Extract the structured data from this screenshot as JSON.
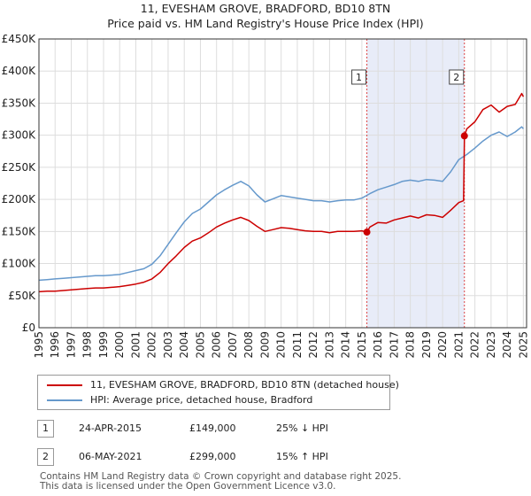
{
  "title_line1": "11, EVESHAM GROVE, BRADFORD, BD10 8TN",
  "title_line2": "Price paid vs. HM Land Registry's House Price Index (HPI)",
  "colors": {
    "property": "#cc0000",
    "hpi": "#6699cc",
    "shade": "#e8ecf8",
    "grid": "#dddddd",
    "vline": "#dd4444"
  },
  "chart_data": {
    "type": "line",
    "title": "11, EVESHAM GROVE, BRADFORD, BD10 8TN — Price paid vs. HM Land Registry's House Price Index (HPI)",
    "xlabel": "",
    "ylabel": "",
    "xlim": [
      1995,
      2025.2
    ],
    "ylim": [
      0,
      450000
    ],
    "y_ticks": [
      0,
      50000,
      100000,
      150000,
      200000,
      250000,
      300000,
      350000,
      400000,
      450000
    ],
    "y_tick_labels": [
      "£0",
      "£50K",
      "£100K",
      "£150K",
      "£200K",
      "£250K",
      "£300K",
      "£350K",
      "£400K",
      "£450K"
    ],
    "x_ticks": [
      1995,
      1996,
      1997,
      1998,
      1999,
      2000,
      2001,
      2002,
      2003,
      2004,
      2005,
      2006,
      2007,
      2008,
      2009,
      2010,
      2011,
      2012,
      2013,
      2014,
      2015,
      2016,
      2017,
      2018,
      2019,
      2020,
      2021,
      2022,
      2023,
      2024,
      2025
    ],
    "x_tick_labels": [
      "1995",
      "1996",
      "1997",
      "1998",
      "1999",
      "2000",
      "2001",
      "2002",
      "2003",
      "2004",
      "2005",
      "2006",
      "2007",
      "2008",
      "2009",
      "2010",
      "2011",
      "2012",
      "2013",
      "2014",
      "2015",
      "2016",
      "2017",
      "2018",
      "2019",
      "2020",
      "2021",
      "2022",
      "2023",
      "2024",
      "2025"
    ],
    "shaded_region": [
      2015.31,
      2021.35
    ],
    "series": [
      {
        "name": "11, EVESHAM GROVE, BRADFORD, BD10 8TN (detached house)",
        "color": "#cc0000",
        "x": [
          1995.0,
          1995.5,
          1996.0,
          1996.5,
          1997.0,
          1997.5,
          1998.0,
          1998.5,
          1999.0,
          1999.5,
          2000.0,
          2000.5,
          2001.0,
          2001.5,
          2002.0,
          2002.5,
          2003.0,
          2003.5,
          2004.0,
          2004.5,
          2005.0,
          2005.5,
          2006.0,
          2006.5,
          2007.0,
          2007.5,
          2008.0,
          2008.5,
          2009.0,
          2009.5,
          2010.0,
          2010.5,
          2011.0,
          2011.5,
          2012.0,
          2012.5,
          2013.0,
          2013.5,
          2014.0,
          2014.5,
          2015.0,
          2015.31,
          2015.5,
          2016.0,
          2016.5,
          2017.0,
          2017.5,
          2018.0,
          2018.5,
          2019.0,
          2019.5,
          2020.0,
          2020.5,
          2021.0,
          2021.3,
          2021.35,
          2021.5,
          2022.0,
          2022.5,
          2023.0,
          2023.5,
          2024.0,
          2024.5,
          2024.9,
          2025.0
        ],
        "values": [
          56000,
          57000,
          57000,
          58000,
          59000,
          60000,
          61000,
          62000,
          62000,
          63000,
          64000,
          66000,
          68000,
          71000,
          76000,
          86000,
          100000,
          112000,
          125000,
          135000,
          140000,
          148000,
          157000,
          163000,
          168000,
          172000,
          167000,
          158000,
          150000,
          153000,
          156000,
          155000,
          153000,
          151000,
          150000,
          150000,
          148000,
          150000,
          150000,
          150000,
          151000,
          149000,
          157000,
          164000,
          163000,
          168000,
          171000,
          174000,
          171000,
          176000,
          175000,
          172000,
          183000,
          195000,
          198000,
          299000,
          310000,
          321000,
          340000,
          347000,
          336000,
          345000,
          348000,
          365000,
          360000
        ]
      },
      {
        "name": "HPI: Average price, detached house, Bradford",
        "color": "#6699cc",
        "x": [
          1995.0,
          1995.5,
          1996.0,
          1996.5,
          1997.0,
          1997.5,
          1998.0,
          1998.5,
          1999.0,
          1999.5,
          2000.0,
          2000.5,
          2001.0,
          2001.5,
          2002.0,
          2002.5,
          2003.0,
          2003.5,
          2004.0,
          2004.5,
          2005.0,
          2005.5,
          2006.0,
          2006.5,
          2007.0,
          2007.5,
          2008.0,
          2008.5,
          2009.0,
          2009.5,
          2010.0,
          2010.5,
          2011.0,
          2011.5,
          2012.0,
          2012.5,
          2013.0,
          2013.5,
          2014.0,
          2014.5,
          2015.0,
          2015.5,
          2016.0,
          2016.5,
          2017.0,
          2017.5,
          2018.0,
          2018.5,
          2019.0,
          2019.5,
          2020.0,
          2020.5,
          2021.0,
          2021.5,
          2022.0,
          2022.5,
          2023.0,
          2023.5,
          2024.0,
          2024.5,
          2024.9,
          2025.0
        ],
        "values": [
          74000,
          75000,
          76000,
          77000,
          78000,
          79000,
          80000,
          81000,
          81000,
          82000,
          83000,
          86000,
          89000,
          92000,
          99000,
          112000,
          130000,
          148000,
          165000,
          178000,
          185000,
          196000,
          207000,
          215000,
          222000,
          228000,
          221000,
          207000,
          196000,
          201000,
          206000,
          204000,
          202000,
          200000,
          198000,
          198000,
          196000,
          198000,
          199000,
          199000,
          202000,
          209000,
          215000,
          219000,
          223000,
          228000,
          230000,
          228000,
          231000,
          230000,
          228000,
          243000,
          262000,
          270000,
          280000,
          291000,
          300000,
          305000,
          298000,
          305000,
          313000,
          310000
        ]
      }
    ],
    "annotations": [
      {
        "label": "1",
        "x": 2015.31,
        "value": 149000
      },
      {
        "label": "2",
        "x": 2021.35,
        "value": 299000
      }
    ]
  },
  "legend": [
    {
      "label": "11, EVESHAM GROVE, BRADFORD, BD10 8TN (detached house)",
      "color": "#cc0000"
    },
    {
      "label": "HPI: Average price, detached house, Bradford",
      "color": "#6699cc"
    }
  ],
  "transactions": [
    {
      "num": "1",
      "date": "24-APR-2015",
      "price": "£149,000",
      "hpi": "25% ↓ HPI"
    },
    {
      "num": "2",
      "date": "06-MAY-2021",
      "price": "£299,000",
      "hpi": "15% ↑ HPI"
    }
  ],
  "footer_line1": "Contains HM Land Registry data © Crown copyright and database right 2025.",
  "footer_line2": "This data is licensed under the Open Government Licence v3.0."
}
